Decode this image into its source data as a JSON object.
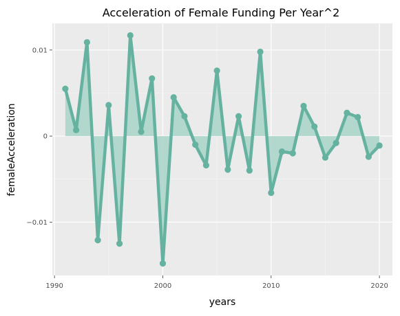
{
  "chart_data": {
    "type": "line",
    "title": "Acceleration of Female Funding Per Year^2",
    "xlabel": "years",
    "ylabel": "femaleAcceleration",
    "xlim": [
      1989.8,
      2021.2
    ],
    "ylim": [
      -0.0162,
      0.0131
    ],
    "x_ticks": [
      1990,
      2000,
      2010,
      2020
    ],
    "y_ticks": [
      -0.01,
      0,
      0.01
    ],
    "y_tick_labels": [
      "−0.01",
      "0",
      "0.01"
    ],
    "grid": true,
    "legend": "none",
    "colors": {
      "line": "#66b2a0",
      "area": "#a8d4c8",
      "panel": "#ebebeb",
      "grid_major": "#ffffff",
      "grid_minor": "#f5f5f5",
      "text": "#4d4d4d"
    },
    "series": [
      {
        "x": [
          1991,
          1992,
          1993,
          1994,
          1995,
          1996,
          1997,
          1998,
          1999,
          2000,
          2001,
          2002,
          2003,
          2004,
          2005,
          2006,
          2007,
          2008,
          2009,
          2010,
          2011,
          2012,
          2013,
          2014,
          2015,
          2016,
          2017,
          2018,
          2019,
          2020
        ],
        "values": [
          0.0055,
          0.0007,
          0.0109,
          -0.0121,
          0.0036,
          -0.0125,
          0.0117,
          0.0005,
          0.0067,
          -0.0148,
          0.0045,
          0.0023,
          -0.001,
          -0.0034,
          0.0076,
          -0.0039,
          0.0023,
          -0.004,
          0.0098,
          -0.0066,
          -0.0018,
          -0.002,
          0.0035,
          0.0011,
          -0.0025,
          -0.0008,
          0.0027,
          0.0022,
          -0.0024,
          -0.0011
        ]
      }
    ]
  }
}
